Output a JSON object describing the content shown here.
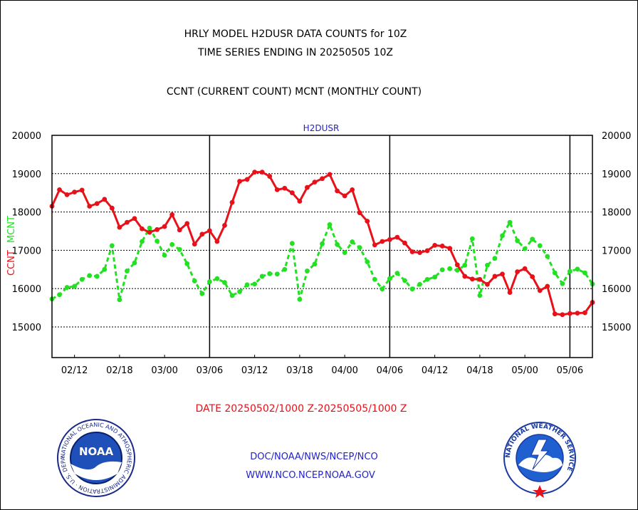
{
  "header": {
    "title_line1": "HRLY MODEL H2DUSR DATA COUNTS for 10Z",
    "title_line2": "TIME SERIES ENDING IN 20250505 10Z",
    "subtitle": "CCNT (CURRENT COUNT) MCNT (MONTHLY COUNT)"
  },
  "footer": {
    "date_range": "DATE 20250502/1000 Z-20250505/1000 Z",
    "link1": "DOC/NOAA/NWS/NCEP/NCO",
    "link2": "WWW.NCO.NCEP.NOAA.GOV"
  },
  "logos": {
    "left": {
      "name": "noaa-logo",
      "inner_text": "NOAA",
      "ring_text": "NATIONAL OCEANIC AND ATMOSPHERIC ADMINISTRATION · U.S. DEPARTMENT OF COMMERCE"
    },
    "right": {
      "name": "nws-logo",
      "ring_text": "NATIONAL WEATHER SERVICE"
    }
  },
  "colors": {
    "ccnt": "#e8111a",
    "mcnt": "#22e022",
    "accent_text": "#2222cc",
    "axis": "#000000"
  },
  "chart_data": {
    "type": "line",
    "title": "H2DUSR",
    "ylabel_parts": [
      {
        "text": "CCNT",
        "color": "#e8111a"
      },
      {
        "text": "MCNT",
        "color": "#22e022"
      }
    ],
    "ylim": [
      14200,
      20000
    ],
    "yticks": [
      15000,
      16000,
      17000,
      18000,
      19000,
      20000
    ],
    "xtick_labels": [
      "02/12",
      "02/18",
      "03/00",
      "03/06",
      "03/12",
      "03/18",
      "04/00",
      "04/06",
      "04/12",
      "04/18",
      "05/00",
      "05/06"
    ],
    "xtick_positions": [
      3,
      9,
      15,
      21,
      27,
      33,
      39,
      45,
      51,
      57,
      63,
      69
    ],
    "xlim": [
      0,
      72
    ],
    "day_boundaries": [
      21,
      45,
      69
    ],
    "grid": true,
    "series": [
      {
        "name": "CCNT",
        "color": "#e8111a",
        "dashed": false,
        "values": [
          18150,
          18580,
          18450,
          18520,
          18570,
          18150,
          18220,
          18330,
          18100,
          17600,
          17730,
          17830,
          17560,
          17470,
          17540,
          17620,
          17930,
          17530,
          17700,
          17160,
          17420,
          17510,
          17230,
          17650,
          18250,
          18800,
          18850,
          19040,
          19040,
          18930,
          18580,
          18620,
          18500,
          18280,
          18640,
          18780,
          18870,
          18980,
          18550,
          18420,
          18580,
          17980,
          17760,
          17140,
          17230,
          17280,
          17340,
          17190,
          16960,
          16940,
          16990,
          17130,
          17110,
          17050,
          16620,
          16320,
          16250,
          16240,
          16110,
          16320,
          16380,
          15900,
          16440,
          16520,
          16310,
          15950,
          16060,
          15340,
          15320,
          15350,
          15360,
          15370,
          15640
        ]
      },
      {
        "name": "MCNT",
        "color": "#22e022",
        "dashed": true,
        "values": [
          15730,
          15840,
          16030,
          16060,
          16240,
          16340,
          16320,
          16500,
          17120,
          15710,
          16460,
          16670,
          17230,
          17580,
          17240,
          16870,
          17150,
          17020,
          16650,
          16200,
          15870,
          16180,
          16260,
          16160,
          15820,
          15920,
          16100,
          16120,
          16320,
          16390,
          16380,
          16500,
          17180,
          15720,
          16460,
          16640,
          17170,
          17670,
          17150,
          16940,
          17220,
          17070,
          16700,
          16240,
          15990,
          16260,
          16400,
          16210,
          15990,
          16110,
          16240,
          16300,
          16490,
          16520,
          16480,
          16610,
          17300,
          15820,
          16610,
          16790,
          17380,
          17730,
          17250,
          17040,
          17290,
          17120,
          16840,
          16410,
          16130,
          16450,
          16510,
          16410,
          16120
        ]
      }
    ]
  }
}
